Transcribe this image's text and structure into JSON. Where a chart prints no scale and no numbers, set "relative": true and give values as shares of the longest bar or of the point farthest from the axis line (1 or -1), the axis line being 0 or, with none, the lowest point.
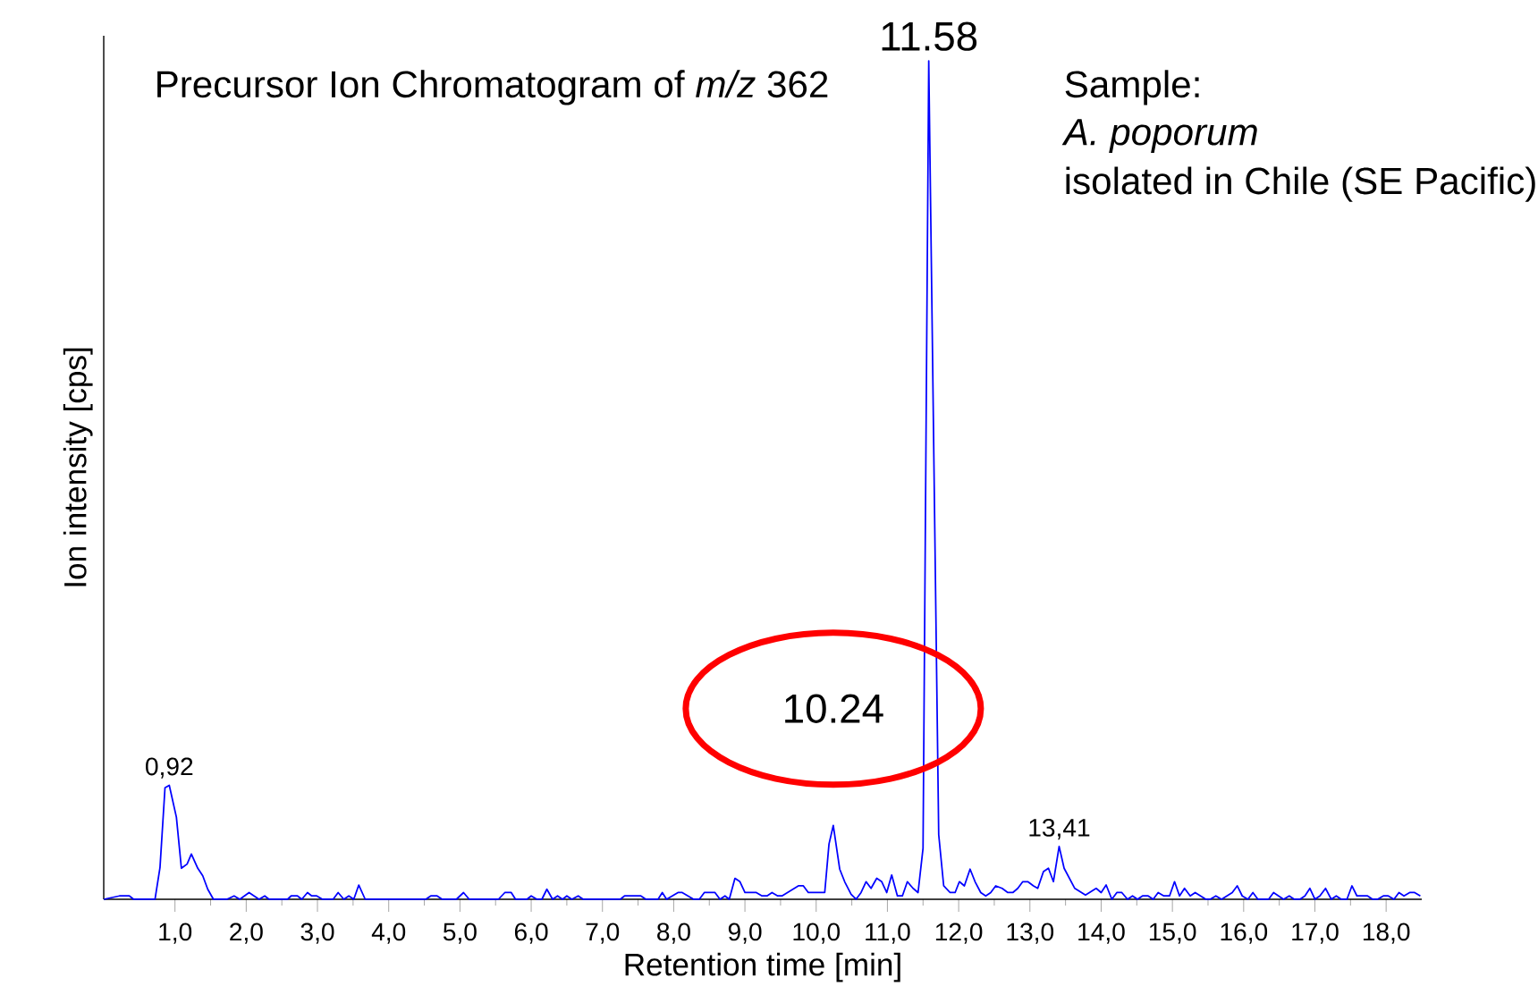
{
  "chart_data": {
    "type": "line",
    "title": "Precursor Ion Chromatogram of *m/z* 362",
    "xlabel": "Retention time [min]",
    "ylabel": "Ion intensity [cps]",
    "relative": true,
    "color": "#0000ff",
    "marker": "none",
    "xlim": [
      0,
      18.5
    ],
    "xticks": [
      {
        "value": 1,
        "label": "1,0"
      },
      {
        "value": 2,
        "label": "2,0"
      },
      {
        "value": 3,
        "label": "3,0"
      },
      {
        "value": 4,
        "label": "4,0"
      },
      {
        "value": 5,
        "label": "5,0"
      },
      {
        "value": 6,
        "label": "6,0"
      },
      {
        "value": 7,
        "label": "7,0"
      },
      {
        "value": 8,
        "label": "8,0"
      },
      {
        "value": 9,
        "label": "9,0"
      },
      {
        "value": 10,
        "label": "10,0"
      },
      {
        "value": 11,
        "label": "11,0"
      },
      {
        "value": 12,
        "label": "12,0"
      },
      {
        "value": 13,
        "label": "13,0"
      },
      {
        "value": 14,
        "label": "14,0"
      },
      {
        "value": 15,
        "label": "15,0"
      },
      {
        "value": 16,
        "label": "16,0"
      },
      {
        "value": 17,
        "label": "17,0"
      },
      {
        "value": 18,
        "label": "18,0"
      }
    ],
    "x": [
      0,
      0.22,
      0.36,
      0.42,
      0.72,
      0.79,
      0.86,
      0.92,
      1.02,
      1.09,
      1.17,
      1.23,
      1.32,
      1.39,
      1.46,
      1.54,
      1.73,
      1.83,
      1.91,
      2.04,
      2.18,
      2.26,
      2.32,
      2.58,
      2.63,
      2.72,
      2.78,
      2.86,
      2.92,
      2.99,
      3.07,
      3.22,
      3.29,
      3.37,
      3.44,
      3.51,
      3.58,
      3.67,
      4.52,
      4.59,
      4.68,
      4.75,
      4.95,
      5.05,
      5.13,
      5.54,
      5.63,
      5.72,
      5.78,
      5.94,
      6.0,
      6.08,
      6.15,
      6.22,
      6.3,
      6.37,
      6.44,
      6.5,
      6.57,
      6.66,
      6.73,
      7.25,
      7.31,
      7.54,
      7.61,
      7.78,
      7.84,
      7.9,
      8.06,
      8.12,
      8.28,
      8.36,
      8.43,
      8.58,
      8.65,
      8.72,
      8.78,
      8.86,
      8.93,
      9.0,
      9.16,
      9.24,
      9.31,
      9.38,
      9.46,
      9.52,
      9.75,
      9.82,
      9.89,
      10.12,
      10.18,
      10.24,
      10.33,
      10.4,
      10.49,
      10.56,
      10.63,
      10.7,
      10.77,
      10.85,
      10.92,
      10.99,
      11.06,
      11.14,
      11.21,
      11.28,
      11.36,
      11.43,
      11.5,
      11.58,
      11.72,
      11.79,
      11.88,
      11.95,
      12.01,
      12.08,
      12.16,
      12.23,
      12.31,
      12.38,
      12.45,
      12.52,
      12.61,
      12.69,
      12.76,
      12.83,
      12.9,
      12.97,
      13.05,
      13.11,
      13.19,
      13.26,
      13.33,
      13.41,
      13.48,
      13.63,
      13.78,
      13.93,
      14.0,
      14.07,
      14.15,
      14.22,
      14.29,
      14.37,
      14.44,
      14.51,
      14.58,
      14.66,
      14.73,
      14.8,
      14.88,
      14.96,
      15.03,
      15.1,
      15.17,
      15.25,
      15.32,
      15.47,
      15.53,
      15.61,
      15.69,
      15.84,
      15.91,
      15.98,
      16.06,
      16.13,
      16.2,
      16.35,
      16.42,
      16.56,
      16.64,
      16.71,
      16.79,
      16.86,
      16.93,
      17.0,
      17.07,
      17.15,
      17.23,
      17.3,
      17.37,
      17.45,
      17.52,
      17.59,
      17.74,
      17.81,
      17.88,
      17.96,
      18.03,
      18.11,
      18.18,
      18.25,
      18.33,
      18.4,
      18.48
    ],
    "values": [
      0,
      0.004,
      0.004,
      0,
      0,
      0.038,
      0.133,
      0.136,
      0.098,
      0.037,
      0.042,
      0.054,
      0.037,
      0.028,
      0.012,
      0,
      0,
      0.004,
      0,
      0.008,
      0,
      0.004,
      0,
      0,
      0.004,
      0.004,
      0,
      0.008,
      0.004,
      0.004,
      0,
      0,
      0.008,
      0,
      0.004,
      0,
      0.017,
      0,
      0,
      0.004,
      0.004,
      0,
      0,
      0.008,
      0,
      0,
      0.008,
      0.008,
      0,
      0,
      0.004,
      0,
      0,
      0.012,
      0,
      0.004,
      0,
      0.004,
      0,
      0.004,
      0,
      0,
      0.004,
      0.004,
      0,
      0,
      0.008,
      0,
      0.008,
      0.008,
      0,
      0,
      0.008,
      0.008,
      0,
      0.004,
      0,
      0.025,
      0.021,
      0.008,
      0.008,
      0.004,
      0.004,
      0.008,
      0.004,
      0.004,
      0.016,
      0.016,
      0.008,
      0.008,
      0.066,
      0.088,
      0.036,
      0.021,
      0.006,
      0,
      0.008,
      0.021,
      0.013,
      0.025,
      0.021,
      0.008,
      0.029,
      0.004,
      0.004,
      0.021,
      0.013,
      0.008,
      0.061,
      1,
      0.077,
      0.016,
      0.008,
      0.008,
      0.021,
      0.016,
      0.036,
      0.021,
      0.008,
      0.004,
      0.008,
      0.016,
      0.013,
      0.008,
      0.008,
      0.013,
      0.021,
      0.021,
      0.016,
      0.013,
      0.033,
      0.037,
      0.021,
      0.063,
      0.037,
      0.013,
      0.005,
      0.013,
      0.008,
      0.017,
      0,
      0.008,
      0.008,
      0,
      0.004,
      0,
      0.004,
      0.004,
      0,
      0.008,
      0.004,
      0.004,
      0.021,
      0.004,
      0.013,
      0.004,
      0.008,
      0,
      0,
      0.004,
      0,
      0.008,
      0.016,
      0.004,
      0,
      0.008,
      0,
      0,
      0.008,
      0,
      0.004,
      0,
      0,
      0.004,
      0.013,
      0,
      0.004,
      0.013,
      0,
      0.004,
      0,
      0,
      0.016,
      0.004,
      0.004,
      0,
      0,
      0.004,
      0.004,
      0,
      0.008,
      0.004,
      0.008,
      0.008,
      0.004
    ],
    "annotations": [
      {
        "text": "11.58",
        "x": 11.58,
        "y": 1
      },
      {
        "text": "10.24",
        "x": 10.24,
        "y": 0.088
      },
      {
        "text": "0,92",
        "x": 0.92,
        "y": 0.136
      },
      {
        "text": "13,41",
        "x": 13.41,
        "y": 0.063
      },
      "Sample:",
      "*A. poporum*",
      "isolated in Chile (SE Pacific)"
    ]
  }
}
